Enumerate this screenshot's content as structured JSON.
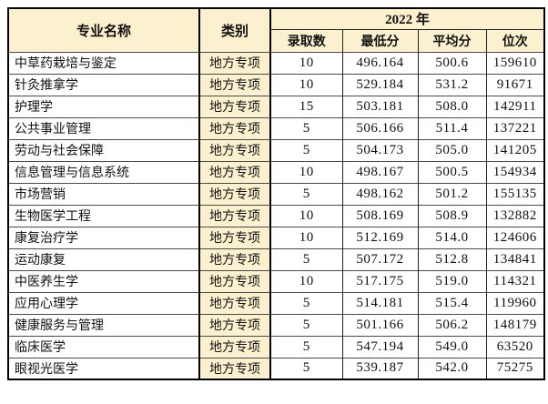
{
  "colors": {
    "header_bg": "#fcf1cf",
    "category_bg": "#fcf1cf",
    "cell_bg": "#ffffff",
    "outer_border": "#000000",
    "row_line": "#4a4a4a",
    "text": "#111111"
  },
  "table": {
    "header": {
      "major": "专业名称",
      "category": "类别",
      "year": "2022 年",
      "sub": [
        "录取数",
        "最低分",
        "平均分",
        "位次"
      ]
    },
    "rows": [
      {
        "major": "中草药栽培与鉴定",
        "category": "地方专项",
        "count": "10",
        "min": "496.164",
        "avg": "500.6",
        "rank": "159610"
      },
      {
        "major": "针灸推拿学",
        "category": "地方专项",
        "count": "10",
        "min": "529.184",
        "avg": "531.2",
        "rank": "91671"
      },
      {
        "major": "护理学",
        "category": "地方专项",
        "count": "15",
        "min": "503.181",
        "avg": "508.0",
        "rank": "142911"
      },
      {
        "major": "公共事业管理",
        "category": "地方专项",
        "count": "5",
        "min": "506.166",
        "avg": "511.4",
        "rank": "137221"
      },
      {
        "major": "劳动与社会保障",
        "category": "地方专项",
        "count": "5",
        "min": "504.173",
        "avg": "505.0",
        "rank": "141205"
      },
      {
        "major": "信息管理与信息系统",
        "category": "地方专项",
        "count": "10",
        "min": "498.167",
        "avg": "500.5",
        "rank": "154934"
      },
      {
        "major": "市场营销",
        "category": "地方专项",
        "count": "5",
        "min": "498.162",
        "avg": "501.2",
        "rank": "155135"
      },
      {
        "major": "生物医学工程",
        "category": "地方专项",
        "count": "10",
        "min": "508.169",
        "avg": "508.9",
        "rank": "132882"
      },
      {
        "major": "康复治疗学",
        "category": "地方专项",
        "count": "10",
        "min": "512.169",
        "avg": "514.0",
        "rank": "124606"
      },
      {
        "major": "运动康复",
        "category": "地方专项",
        "count": "5",
        "min": "507.172",
        "avg": "512.8",
        "rank": "134841"
      },
      {
        "major": "中医养生学",
        "category": "地方专项",
        "count": "10",
        "min": "517.175",
        "avg": "519.0",
        "rank": "114321"
      },
      {
        "major": "应用心理学",
        "category": "地方专项",
        "count": "5",
        "min": "514.181",
        "avg": "515.4",
        "rank": "119960"
      },
      {
        "major": "健康服务与管理",
        "category": "地方专项",
        "count": "5",
        "min": "501.166",
        "avg": "506.2",
        "rank": "148179"
      },
      {
        "major": "临床医学",
        "category": "地方专项",
        "count": "5",
        "min": "547.194",
        "avg": "549.0",
        "rank": "63520"
      },
      {
        "major": "眼视光医学",
        "category": "地方专项",
        "count": "5",
        "min": "539.187",
        "avg": "542.0",
        "rank": "75275"
      }
    ]
  }
}
